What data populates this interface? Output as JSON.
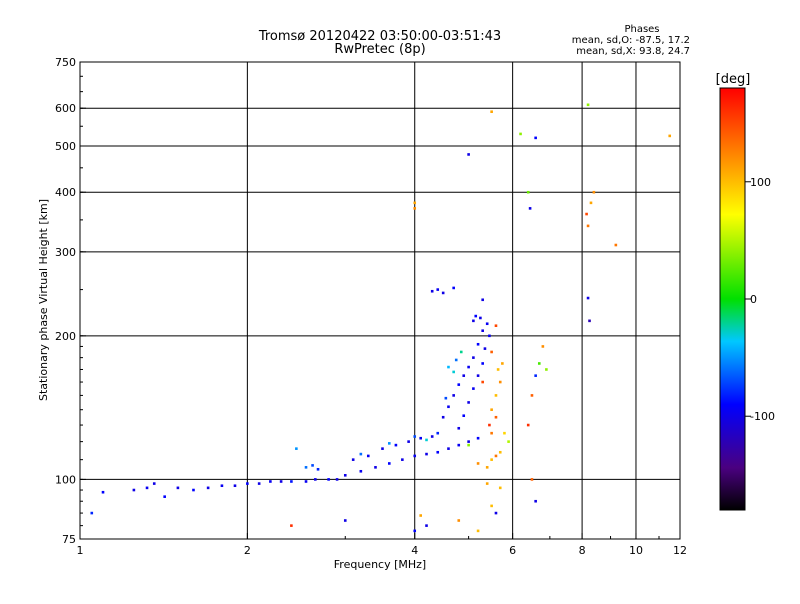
{
  "chart_data": {
    "type": "scatter",
    "title": "Tromsø 20120422 03:50:00-03:51:43",
    "subtitle": "RwPretec (8p)",
    "xlabel": "Frequency [MHz]",
    "ylabel": "Stationary phase Virtual Height [km]",
    "x_scale": "log",
    "y_scale": "log",
    "xlim": [
      1,
      12
    ],
    "ylim": [
      75,
      750
    ],
    "x_ticks": [
      1,
      2,
      4,
      6,
      8,
      10,
      12
    ],
    "x_tick_labels": [
      "1",
      "2",
      "4",
      "6",
      "8",
      "10",
      "12"
    ],
    "y_ticks": [
      75,
      100,
      200,
      300,
      400,
      500,
      600,
      750
    ],
    "y_tick_labels": [
      "75",
      "100",
      "200",
      "300",
      "400",
      "500",
      "600",
      "750"
    ],
    "grid": true,
    "stats": {
      "heading": "Phases",
      "line_o": "mean, sd,O: -87.5, 17.2",
      "line_x": "mean, sd,X:  93.8, 24.7"
    },
    "colorbar": {
      "label": "[deg]",
      "range": [
        -180,
        180
      ],
      "ticks": [
        100,
        0,
        -100
      ],
      "tick_labels": [
        "100",
        "0",
        "-100"
      ]
    },
    "series": [
      {
        "points": [
          [
            1.05,
            85,
            -80
          ],
          [
            1.1,
            94,
            -90
          ],
          [
            1.25,
            95,
            -100
          ],
          [
            1.32,
            96,
            -95
          ],
          [
            1.36,
            98,
            -100
          ],
          [
            1.42,
            92,
            -90
          ],
          [
            1.5,
            96,
            -100
          ],
          [
            1.6,
            95,
            -90
          ],
          [
            1.7,
            96,
            -100
          ],
          [
            1.8,
            97,
            -95
          ],
          [
            1.9,
            97,
            -100
          ],
          [
            2.0,
            98,
            -90
          ],
          [
            2.1,
            98,
            -100
          ],
          [
            2.2,
            99,
            -95
          ],
          [
            2.3,
            99,
            -100
          ],
          [
            2.4,
            99,
            -85
          ],
          [
            2.55,
            99,
            -95
          ],
          [
            2.65,
            100,
            -100
          ],
          [
            2.8,
            100,
            -90
          ],
          [
            2.9,
            100,
            -100
          ],
          [
            2.55,
            106,
            -60
          ],
          [
            2.62,
            107,
            -70
          ],
          [
            2.68,
            105,
            -80
          ],
          [
            2.45,
            116,
            -50
          ],
          [
            3.0,
            102,
            -100
          ],
          [
            3.2,
            104,
            -95
          ],
          [
            3.4,
            106,
            -100
          ],
          [
            3.6,
            108,
            -90
          ],
          [
            3.8,
            110,
            -100
          ],
          [
            4.0,
            112,
            -95
          ],
          [
            4.2,
            113,
            -100
          ],
          [
            4.4,
            114,
            -90
          ],
          [
            4.6,
            116,
            -100
          ],
          [
            4.8,
            118,
            -95
          ],
          [
            5.0,
            120,
            -100
          ],
          [
            5.2,
            122,
            -90
          ],
          [
            3.1,
            110,
            -100
          ],
          [
            3.3,
            112,
            -95
          ],
          [
            3.5,
            116,
            -100
          ],
          [
            3.7,
            118,
            -90
          ],
          [
            3.9,
            120,
            -100
          ],
          [
            4.1,
            122,
            -95
          ],
          [
            4.3,
            123,
            -100
          ],
          [
            3.2,
            113,
            -60
          ],
          [
            3.6,
            119,
            -50
          ],
          [
            4.0,
            123,
            -70
          ],
          [
            4.2,
            121,
            -30
          ],
          [
            4.4,
            125,
            -80
          ],
          [
            4.5,
            135,
            -100
          ],
          [
            4.6,
            142,
            -95
          ],
          [
            4.7,
            150,
            -100
          ],
          [
            4.8,
            158,
            -90
          ],
          [
            4.9,
            165,
            -100
          ],
          [
            5.0,
            172,
            -95
          ],
          [
            5.1,
            180,
            -100
          ],
          [
            5.2,
            192,
            -90
          ],
          [
            5.3,
            205,
            -100
          ],
          [
            5.4,
            212,
            -95
          ],
          [
            4.8,
            128,
            -100
          ],
          [
            4.9,
            136,
            -90
          ],
          [
            5.0,
            145,
            -100
          ],
          [
            5.1,
            155,
            -95
          ],
          [
            5.2,
            165,
            -100
          ],
          [
            5.3,
            175,
            -90
          ],
          [
            5.35,
            188,
            -100
          ],
          [
            5.45,
            200,
            -95
          ],
          [
            5.1,
            215,
            -100
          ],
          [
            5.15,
            220,
            -90
          ],
          [
            5.25,
            218,
            -100
          ],
          [
            4.6,
            172,
            -40
          ],
          [
            4.7,
            168,
            -30
          ],
          [
            4.75,
            178,
            -60
          ],
          [
            4.85,
            185,
            -20
          ],
          [
            4.55,
            148,
            -70
          ],
          [
            4.3,
            248,
            -100
          ],
          [
            4.4,
            250,
            -95
          ],
          [
            4.5,
            246,
            -100
          ],
          [
            4.7,
            252,
            -90
          ],
          [
            5.3,
            238,
            -100
          ],
          [
            5.0,
            118,
            40
          ],
          [
            5.2,
            108,
            120
          ],
          [
            5.4,
            106,
            110
          ],
          [
            5.5,
            110,
            100
          ],
          [
            5.6,
            112,
            130
          ],
          [
            5.7,
            114,
            100
          ],
          [
            5.8,
            125,
            90
          ],
          [
            5.5,
            140,
            110
          ],
          [
            5.6,
            150,
            100
          ],
          [
            5.7,
            160,
            120
          ],
          [
            5.65,
            170,
            100
          ],
          [
            5.75,
            175,
            110
          ],
          [
            5.6,
            135,
            140
          ],
          [
            5.5,
            125,
            130
          ],
          [
            5.45,
            130,
            160
          ],
          [
            5.9,
            120,
            50
          ],
          [
            5.3,
            160,
            150
          ],
          [
            5.5,
            185,
            140
          ],
          [
            5.6,
            210,
            150
          ],
          [
            5.4,
            98,
            110
          ],
          [
            5.7,
            96,
            100
          ],
          [
            5.5,
            88,
            100
          ],
          [
            5.6,
            85,
            -100
          ],
          [
            4.1,
            84,
            110
          ],
          [
            4.2,
            80,
            -100
          ],
          [
            4.8,
            82,
            120
          ],
          [
            5.2,
            78,
            100
          ],
          [
            4.0,
            78,
            -90
          ],
          [
            2.4,
            80,
            160
          ],
          [
            3.0,
            82,
            -100
          ],
          [
            6.4,
            130,
            160
          ],
          [
            6.5,
            150,
            140
          ],
          [
            6.6,
            165,
            -80
          ],
          [
            6.7,
            175,
            20
          ],
          [
            6.8,
            190,
            120
          ],
          [
            6.6,
            90,
            -100
          ],
          [
            6.5,
            100,
            140
          ],
          [
            6.9,
            170,
            40
          ],
          [
            4.0,
            370,
            120
          ],
          [
            4.0,
            380,
            110
          ],
          [
            5.0,
            480,
            -100
          ],
          [
            5.5,
            590,
            110
          ],
          [
            6.2,
            530,
            40
          ],
          [
            6.6,
            520,
            -90
          ],
          [
            6.4,
            400,
            30
          ],
          [
            6.45,
            370,
            -100
          ],
          [
            8.2,
            610,
            40
          ],
          [
            8.3,
            380,
            110
          ],
          [
            8.2,
            340,
            130
          ],
          [
            8.4,
            400,
            120
          ],
          [
            8.15,
            360,
            150
          ],
          [
            9.2,
            310,
            130
          ],
          [
            8.2,
            240,
            -100
          ],
          [
            8.25,
            215,
            -120
          ],
          [
            11.5,
            525,
            110
          ]
        ]
      }
    ]
  }
}
